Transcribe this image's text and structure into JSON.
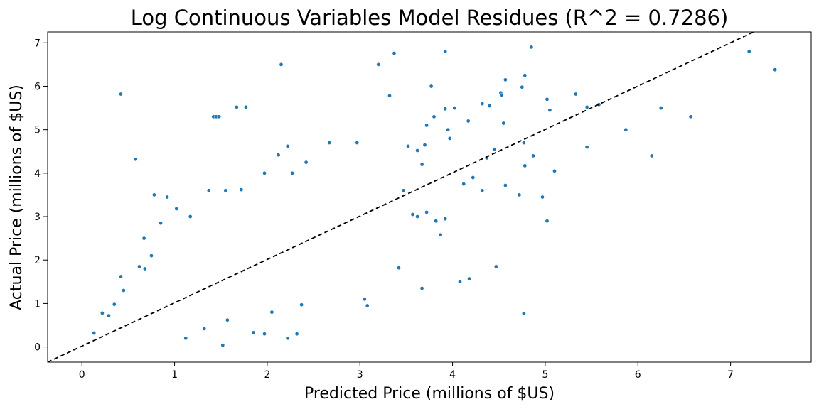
{
  "chart_data": {
    "type": "scatter",
    "title": "Log Continuous Variables Model Residues (R^2 = 0.7286)",
    "xlabel": "Predicted Price (millions of $US)",
    "ylabel": "Actual Price (millions of $US)",
    "xlim": [
      -0.37,
      7.87
    ],
    "ylim": [
      -0.35,
      7.25
    ],
    "xticks": [
      0,
      1,
      2,
      3,
      4,
      5,
      6,
      7
    ],
    "yticks": [
      0,
      1,
      2,
      3,
      4,
      5,
      6,
      7
    ],
    "grid": false,
    "legend": "none",
    "point_color": "#1f77b4",
    "reference_line": {
      "style": "dashed",
      "color": "#000000",
      "from": [
        -0.37,
        -0.35
      ],
      "to": [
        7.25,
        7.25
      ]
    },
    "series": [
      {
        "points": [
          [
            0.42,
            5.82
          ],
          [
            0.58,
            4.32
          ],
          [
            0.13,
            0.32
          ],
          [
            0.22,
            0.78
          ],
          [
            0.29,
            0.72
          ],
          [
            1.42,
            5.3
          ],
          [
            1.45,
            5.3
          ],
          [
            1.48,
            5.3
          ],
          [
            1.67,
            5.52
          ],
          [
            1.77,
            5.52
          ],
          [
            2.15,
            6.5
          ],
          [
            3.2,
            6.5
          ],
          [
            3.37,
            6.76
          ],
          [
            3.92,
            6.8
          ],
          [
            4.85,
            6.9
          ],
          [
            7.2,
            6.8
          ],
          [
            7.48,
            6.38
          ],
          [
            4.57,
            6.15
          ],
          [
            4.78,
            6.25
          ],
          [
            3.77,
            6.0
          ],
          [
            3.32,
            5.78
          ],
          [
            4.52,
            5.85
          ],
          [
            4.53,
            5.8
          ],
          [
            4.4,
            5.55
          ],
          [
            4.75,
            5.98
          ],
          [
            5.02,
            5.7
          ],
          [
            5.33,
            5.82
          ],
          [
            5.45,
            5.52
          ],
          [
            5.58,
            5.58
          ],
          [
            5.05,
            5.45
          ],
          [
            6.25,
            5.5
          ],
          [
            6.57,
            5.3
          ],
          [
            5.87,
            5.0
          ],
          [
            5.45,
            4.6
          ],
          [
            6.15,
            4.4
          ],
          [
            4.17,
            5.2
          ],
          [
            4.32,
            5.6
          ],
          [
            3.92,
            5.48
          ],
          [
            4.02,
            5.5
          ],
          [
            3.8,
            5.3
          ],
          [
            3.72,
            5.1
          ],
          [
            4.55,
            5.15
          ],
          [
            3.95,
            5.0
          ],
          [
            3.97,
            4.8
          ],
          [
            4.77,
            4.7
          ],
          [
            4.87,
            4.4
          ],
          [
            4.78,
            4.17
          ],
          [
            5.1,
            4.05
          ],
          [
            4.57,
            3.72
          ],
          [
            4.72,
            3.5
          ],
          [
            4.97,
            3.45
          ],
          [
            5.02,
            2.9
          ],
          [
            4.47,
            1.85
          ],
          [
            4.77,
            0.77
          ],
          [
            4.18,
            1.57
          ],
          [
            4.08,
            1.5
          ],
          [
            3.67,
            1.35
          ],
          [
            3.42,
            1.82
          ],
          [
            3.05,
            1.1
          ],
          [
            3.08,
            0.95
          ],
          [
            3.62,
            3.0
          ],
          [
            3.72,
            3.1
          ],
          [
            3.82,
            2.9
          ],
          [
            3.87,
            2.58
          ],
          [
            3.92,
            2.95
          ],
          [
            4.12,
            3.75
          ],
          [
            4.22,
            3.9
          ],
          [
            4.32,
            3.6
          ],
          [
            4.37,
            4.35
          ],
          [
            4.45,
            4.55
          ],
          [
            3.52,
            4.62
          ],
          [
            3.62,
            4.52
          ],
          [
            3.7,
            4.65
          ],
          [
            3.67,
            4.2
          ],
          [
            3.57,
            3.05
          ],
          [
            3.47,
            3.6
          ],
          [
            2.97,
            4.7
          ],
          [
            2.67,
            4.7
          ],
          [
            2.42,
            4.25
          ],
          [
            2.27,
            4.0
          ],
          [
            2.12,
            4.42
          ],
          [
            1.97,
            4.0
          ],
          [
            2.22,
            4.62
          ],
          [
            1.72,
            3.62
          ],
          [
            1.55,
            3.6
          ],
          [
            1.37,
            3.6
          ],
          [
            1.02,
            3.18
          ],
          [
            1.17,
            3.0
          ],
          [
            0.78,
            3.5
          ],
          [
            0.92,
            3.45
          ],
          [
            0.85,
            2.85
          ],
          [
            0.67,
            2.5
          ],
          [
            0.75,
            2.1
          ],
          [
            0.62,
            1.85
          ],
          [
            0.68,
            1.8
          ],
          [
            0.42,
            1.62
          ],
          [
            0.45,
            1.3
          ],
          [
            0.35,
            0.98
          ],
          [
            1.85,
            0.33
          ],
          [
            2.05,
            0.8
          ],
          [
            2.32,
            0.3
          ],
          [
            2.37,
            0.97
          ],
          [
            2.22,
            0.2
          ],
          [
            1.97,
            0.3
          ],
          [
            1.52,
            0.04
          ],
          [
            1.57,
            0.62
          ],
          [
            1.32,
            0.42
          ],
          [
            1.12,
            0.2
          ]
        ]
      }
    ]
  }
}
